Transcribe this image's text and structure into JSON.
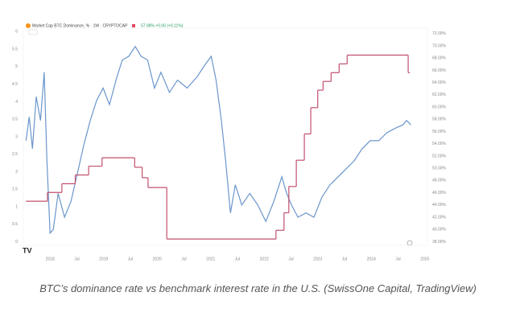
{
  "chart_data": {
    "type": "line",
    "title": "Market Cap BTC Dominance, % · 1W · CRYPTOCAP",
    "subtitle": "57.98% +0.06 (+0.11%)",
    "caption": "BTC’s dominance rate vs benchmark interest rate in the U.S. (SwissOne Capital, TradingView)",
    "xlim": [
      2017.5,
      2025.05
    ],
    "xticks": [
      2018,
      {
        "value": 2018.5,
        "label": "Jul"
      },
      2019,
      {
        "value": 2019.5,
        "label": "Jul"
      },
      2020,
      {
        "value": 2020.5,
        "label": "Jul"
      },
      2021,
      {
        "value": 2021.5,
        "label": "Jul"
      },
      2022,
      {
        "value": 2022.5,
        "label": "Jul"
      },
      2023,
      {
        "value": 2023.5,
        "label": "Jul"
      },
      2024,
      {
        "value": 2024.5,
        "label": "Jul"
      },
      2025
    ],
    "ylim": [
      -0.1,
      6.1
    ],
    "yticks": [
      0,
      0.5,
      1,
      1.5,
      2,
      2.5,
      3,
      3.5,
      4,
      4.5,
      5,
      5.5,
      6
    ],
    "y2lim": [
      37.4,
      72.9
    ],
    "y2ticks": [
      {
        "value": 38,
        "label": "38.00%"
      },
      {
        "value": 40,
        "label": "40.00%"
      },
      {
        "value": 42,
        "label": "42.00%"
      },
      {
        "value": 44,
        "label": "44.00%"
      },
      {
        "value": 46,
        "label": "46.00%"
      },
      {
        "value": 48,
        "label": "48.00%"
      },
      {
        "value": 50,
        "label": "50.00%"
      },
      {
        "value": 52,
        "label": "52.00%"
      },
      {
        "value": 54,
        "label": "54.00%"
      },
      {
        "value": 56,
        "label": "56.00%"
      },
      {
        "value": 58,
        "label": "58.00%"
      },
      {
        "value": 60,
        "label": "60.00%"
      },
      {
        "value": 62,
        "label": "62.00%"
      },
      {
        "value": 64,
        "label": "64.00%"
      },
      {
        "value": 66,
        "label": "66.00%"
      },
      {
        "value": 68,
        "label": "68.00%"
      },
      {
        "value": 70,
        "label": "70.00%"
      },
      {
        "value": 72,
        "label": "72.00%"
      }
    ],
    "series": [
      {
        "color": "#6b96cc",
        "axis": "y2",
        "step": false,
        "x": [
          2017.55,
          2017.61,
          2017.67,
          2017.74,
          2017.82,
          2017.89,
          2017.94,
          2018.0,
          2018.06,
          2018.15,
          2018.27,
          2018.39,
          2018.51,
          2018.63,
          2018.75,
          2018.87,
          2018.99,
          2019.11,
          2019.25,
          2019.35,
          2019.47,
          2019.59,
          2019.7,
          2019.82,
          2019.95,
          2020.07,
          2020.23,
          2020.38,
          2020.56,
          2020.75,
          2020.9,
          2021.01,
          2021.1,
          2021.2,
          2021.28,
          2021.37,
          2021.46,
          2021.58,
          2021.73,
          2021.88,
          2022.03,
          2022.18,
          2022.33,
          2022.42,
          2022.51,
          2022.63,
          2022.78,
          2022.93,
          2023.08,
          2023.23,
          2023.38,
          2023.53,
          2023.68,
          2023.83,
          2023.98,
          2024.14,
          2024.29,
          2024.44,
          2024.59,
          2024.66,
          2024.74
        ],
        "values": [
          54.5,
          58.4,
          53.2,
          61.7,
          57.8,
          65.7,
          51.2,
          39.4,
          40.0,
          45.9,
          42.0,
          44.6,
          49.2,
          53.8,
          57.8,
          61.1,
          63.1,
          60.4,
          65.0,
          67.7,
          68.3,
          69.9,
          68.3,
          67.7,
          63.1,
          65.7,
          62.4,
          64.4,
          63.1,
          65.0,
          67.0,
          68.3,
          64.4,
          57.8,
          51.2,
          42.7,
          47.3,
          44.0,
          45.9,
          44.0,
          41.3,
          44.6,
          48.6,
          45.9,
          44.0,
          42.0,
          42.7,
          42.0,
          45.3,
          47.3,
          48.6,
          49.9,
          51.2,
          53.2,
          54.5,
          54.5,
          55.8,
          56.5,
          57.1,
          57.8,
          57.1
        ]
      },
      {
        "color": "#c2506e",
        "axis": "y",
        "step": true,
        "x": [
          2017.55,
          2017.95,
          2018.22,
          2018.47,
          2018.72,
          2018.97,
          2019.58,
          2019.72,
          2019.83,
          2020.18,
          2022.22,
          2022.37,
          2022.46,
          2022.6,
          2022.75,
          2022.87,
          2023.0,
          2023.1,
          2023.25,
          2023.4,
          2023.55,
          2024.69
        ],
        "values": [
          1.16,
          1.41,
          1.66,
          1.91,
          2.16,
          2.4,
          2.13,
          1.83,
          1.55,
          0.08,
          0.33,
          0.83,
          1.58,
          2.33,
          3.08,
          3.83,
          4.33,
          4.58,
          4.83,
          5.08,
          5.33,
          4.83
        ]
      }
    ]
  }
}
